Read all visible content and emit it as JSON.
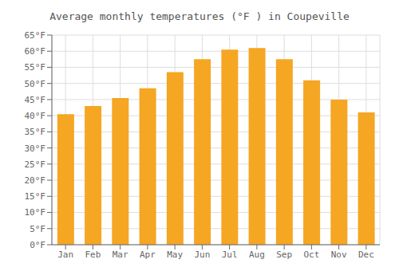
{
  "chart_data": {
    "type": "bar",
    "title": "Average monthly temperatures (°F ) in Coupeville",
    "categories": [
      "Jan",
      "Feb",
      "Mar",
      "Apr",
      "May",
      "Jun",
      "Jul",
      "Aug",
      "Sep",
      "Oct",
      "Nov",
      "Dec"
    ],
    "values": [
      40.5,
      43.0,
      45.5,
      48.5,
      53.5,
      57.5,
      60.5,
      61.0,
      57.5,
      51.0,
      45.0,
      41.0
    ],
    "color": "#F5A623",
    "ylim": [
      0,
      65
    ],
    "yticks": [
      {
        "value": 0,
        "label": "0°F"
      },
      {
        "value": 5,
        "label": "5°F"
      },
      {
        "value": 10,
        "label": "10°F"
      },
      {
        "value": 15,
        "label": "15°F"
      },
      {
        "value": 20,
        "label": "20°F"
      },
      {
        "value": 25,
        "label": "25°F"
      },
      {
        "value": 30,
        "label": "30°F"
      },
      {
        "value": 35,
        "label": "35°F"
      },
      {
        "value": 40,
        "label": "40°F"
      },
      {
        "value": 45,
        "label": "45°F"
      },
      {
        "value": 50,
        "label": "50°F"
      },
      {
        "value": 55,
        "label": "55°F"
      },
      {
        "value": 60,
        "label": "60°F"
      },
      {
        "value": 65,
        "label": "65°F"
      }
    ],
    "grid": true
  }
}
